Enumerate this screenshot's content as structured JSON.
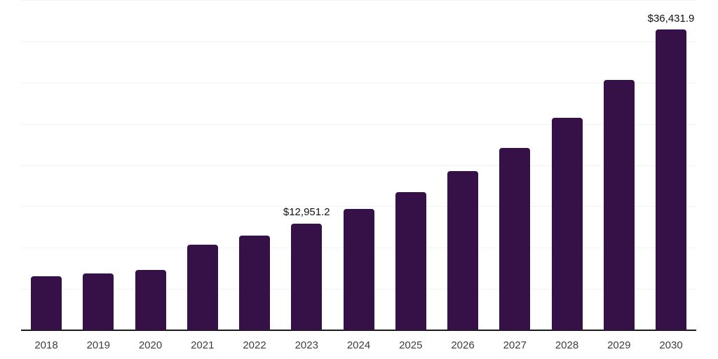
{
  "chart_data": {
    "type": "bar",
    "categories": [
      "2018",
      "2019",
      "2020",
      "2021",
      "2022",
      "2023",
      "2024",
      "2025",
      "2026",
      "2027",
      "2028",
      "2029",
      "2030"
    ],
    "values": [
      6500,
      6920,
      7290,
      10360,
      11480,
      12951.2,
      14730,
      16700,
      19280,
      22120,
      25750,
      30280,
      36431.9
    ],
    "data_labels": [
      {
        "category": "2023",
        "text": "$12,951.2"
      },
      {
        "category": "2030",
        "text": "$36,431.9"
      }
    ],
    "xlabel": "",
    "ylabel": "",
    "ylim": [
      0,
      40000
    ],
    "gridline_interval": 5000,
    "grid": true,
    "legend": "none",
    "colors": {
      "bar": "#351147",
      "axis_line": "#1a1a1a",
      "gridline": "#f3f3f3",
      "tick_label": "#3d3d3d",
      "data_label": "#111111"
    }
  }
}
